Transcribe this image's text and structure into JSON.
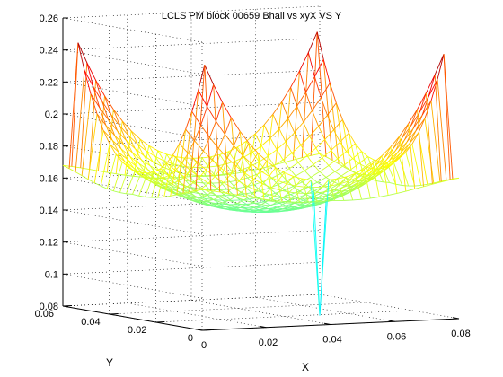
{
  "chart_data": {
    "type": "surface-mesh",
    "title": "LCLS PM block 00659 Bhall vs xyX VS Y",
    "xlabel": "X",
    "ylabel": "Y",
    "zlabel": "",
    "xlim": [
      0,
      0.08
    ],
    "ylim": [
      0,
      0.06
    ],
    "zlim": [
      0.08,
      0.26
    ],
    "x_ticks": [
      "0",
      "0.02",
      "0.04",
      "0.06",
      "0.08"
    ],
    "y_ticks": [
      "0",
      "0.02",
      "0.04",
      "0.06"
    ],
    "z_ticks": [
      "0.08",
      "0.1",
      "0.12",
      "0.14",
      "0.16",
      "0.18",
      "0.2",
      "0.22",
      "0.24",
      "0.26"
    ],
    "grid": true,
    "colormap": "jet",
    "mesh": {
      "x_range": [
        0,
        0.08
      ],
      "y_range": [
        0,
        0.06
      ],
      "x_count": 30,
      "y_count": 23,
      "z_center_min": 0.143,
      "z_saddle": 0.207,
      "z_corner_peak": 0.253,
      "z_spike_min": 0.085,
      "z_edge_drop": 0.148
    }
  }
}
